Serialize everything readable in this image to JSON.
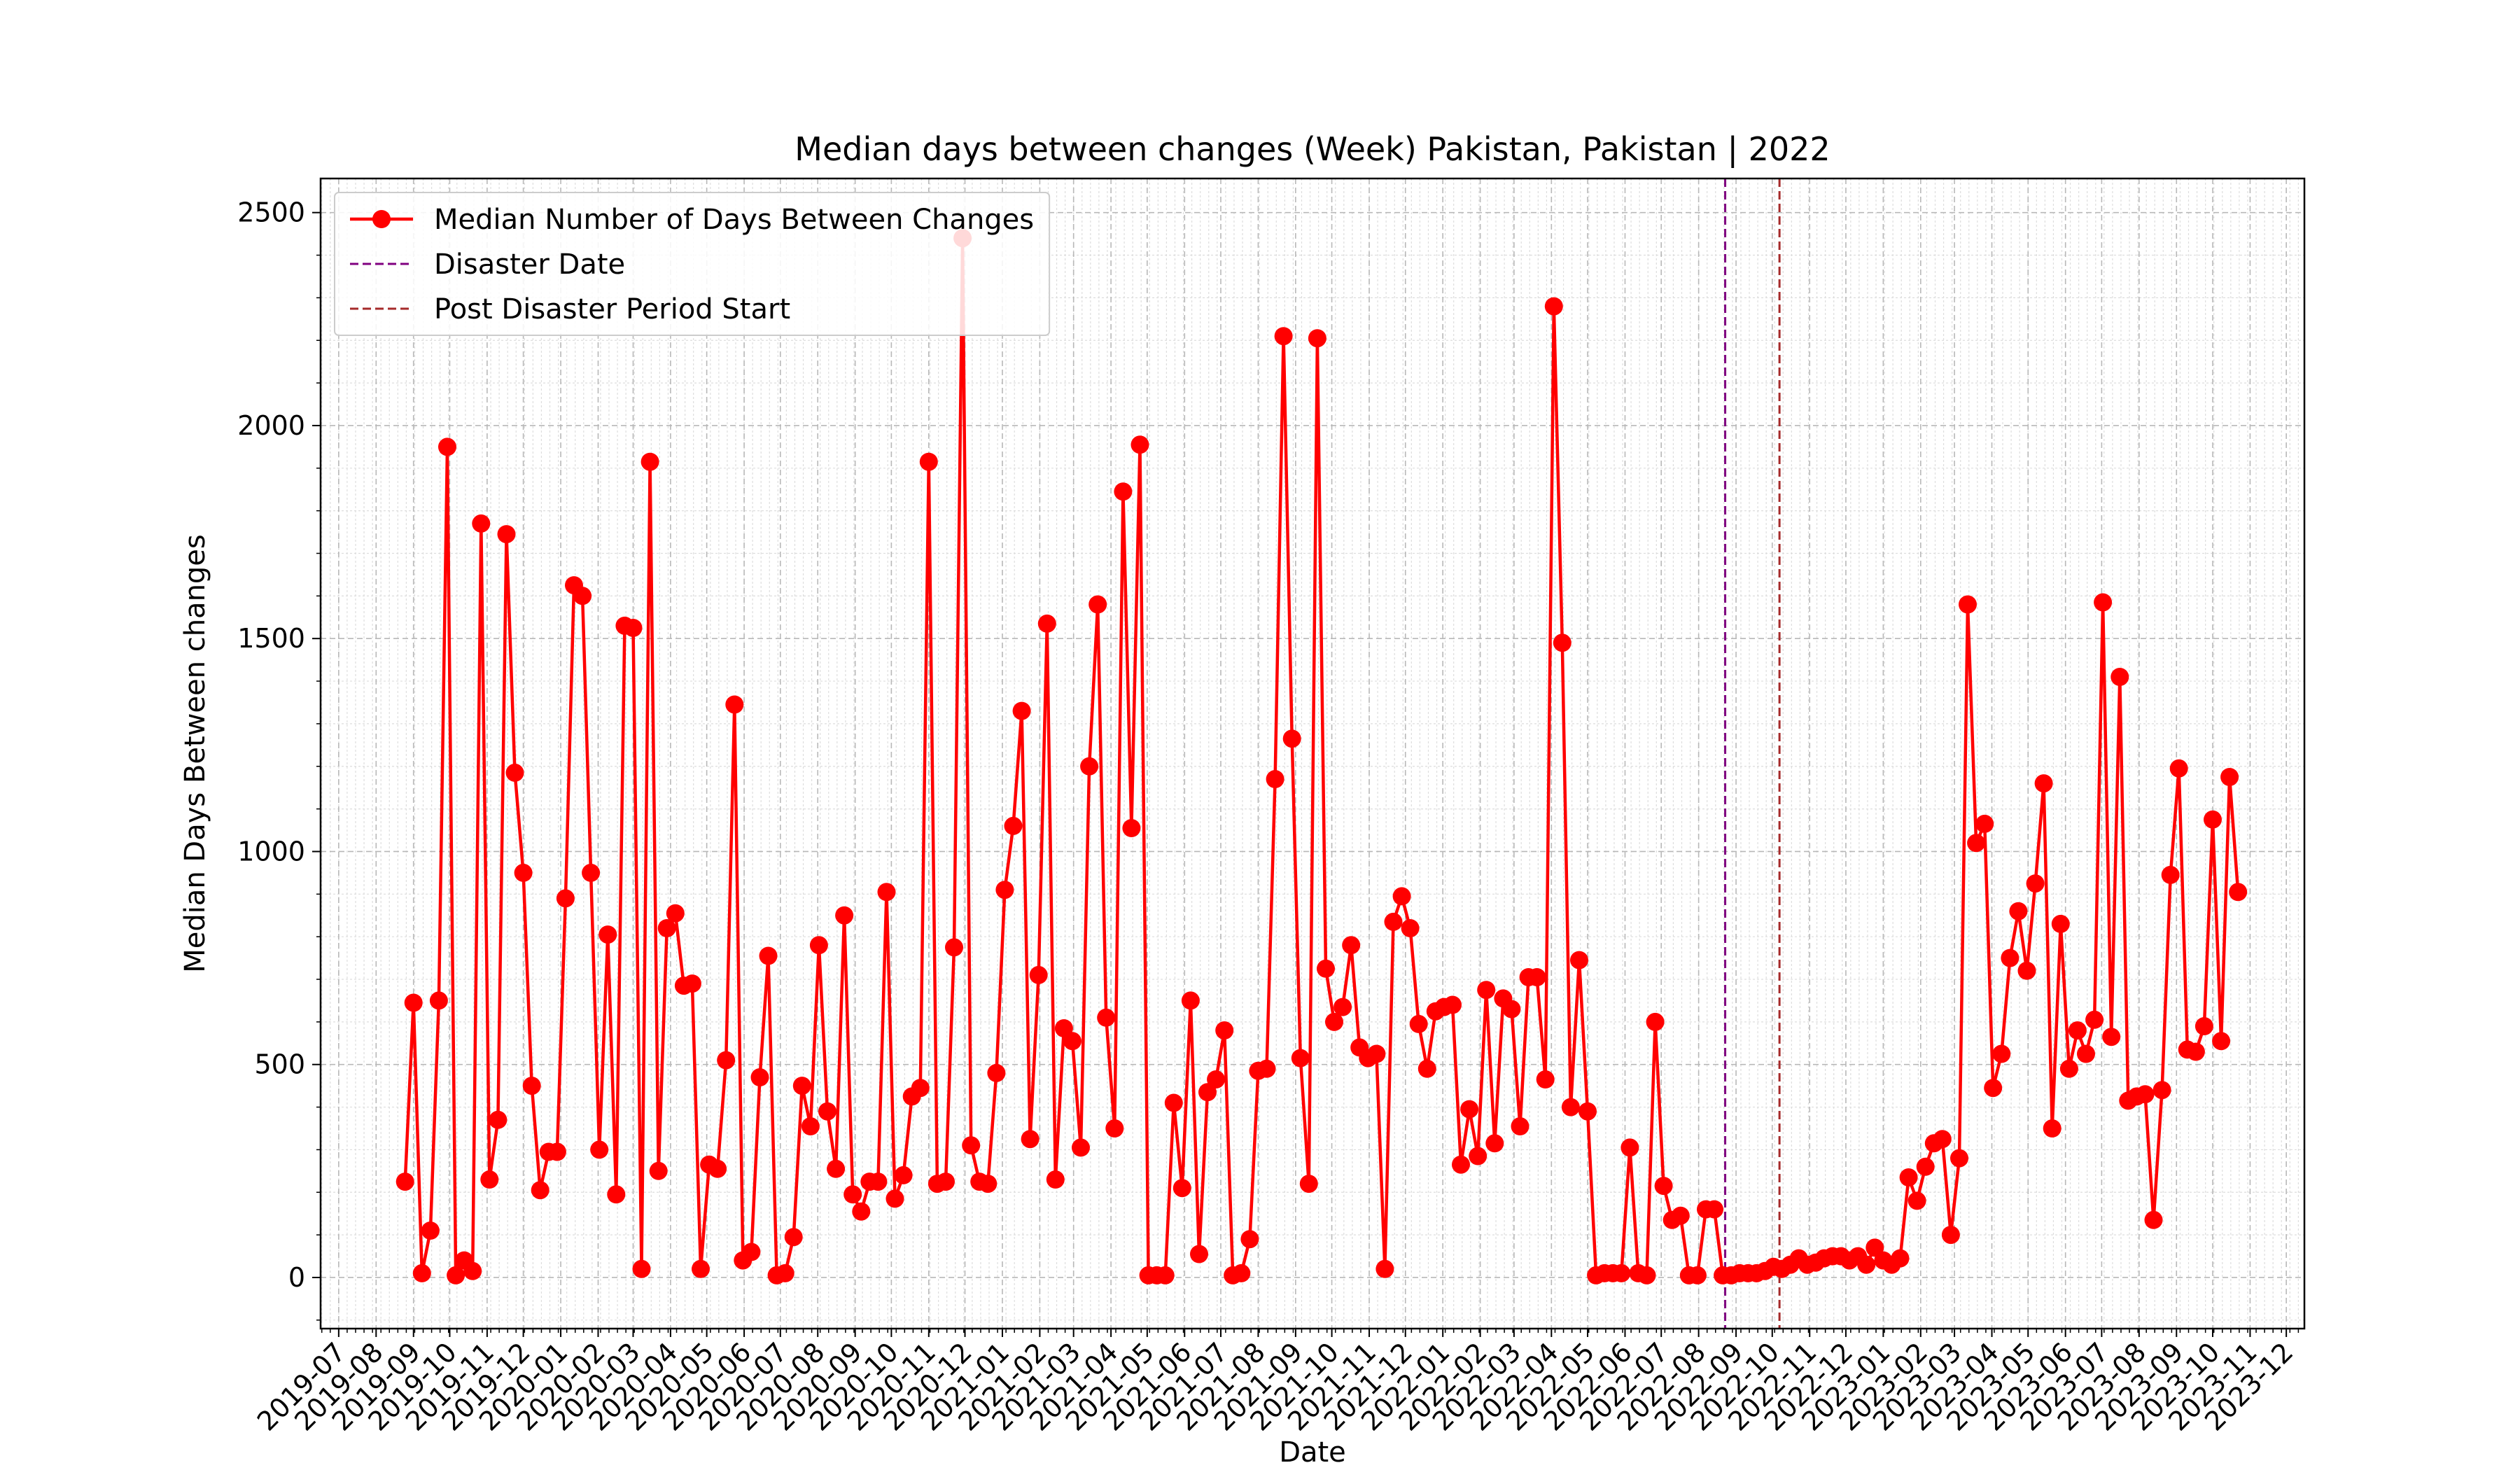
{
  "chart_data": {
    "type": "line",
    "title": "Median days between changes (Week) Pakistan, Pakistan | 2022",
    "xlabel": "Date",
    "ylabel": "Median Days Between changes",
    "xlim": [
      "2019-06-16",
      "2023-12-16"
    ],
    "ylim": [
      -120,
      2580
    ],
    "y_ticks": [
      0,
      500,
      1000,
      1500,
      2000,
      2500
    ],
    "x_ticks": [
      "2019-07",
      "2019-08",
      "2019-09",
      "2019-10",
      "2019-11",
      "2019-12",
      "2020-01",
      "2020-02",
      "2020-03",
      "2020-04",
      "2020-05",
      "2020-06",
      "2020-07",
      "2020-08",
      "2020-09",
      "2020-10",
      "2020-11",
      "2020-12",
      "2021-01",
      "2021-02",
      "2021-03",
      "2021-04",
      "2021-05",
      "2021-06",
      "2021-07",
      "2021-08",
      "2021-09",
      "2021-10",
      "2021-11",
      "2021-12",
      "2022-01",
      "2022-02",
      "2022-03",
      "2022-04",
      "2022-05",
      "2022-06",
      "2022-07",
      "2022-08",
      "2022-09",
      "2022-10",
      "2022-11",
      "2022-12",
      "2023-01",
      "2023-02",
      "2023-03",
      "2023-04",
      "2023-05",
      "2023-06",
      "2023-07",
      "2023-08",
      "2023-09",
      "2023-10",
      "2023-11",
      "2023-12"
    ],
    "grid": true,
    "legend_position": "top-left",
    "series": [
      {
        "name": "Median Number of Days Between Changes",
        "color": "#ff0000",
        "marker": "circle",
        "start_date": "2019-08-25",
        "interval_days": 7,
        "values": [
          225,
          645,
          10,
          110,
          650,
          1950,
          5,
          40,
          15,
          1770,
          230,
          370,
          1745,
          1185,
          950,
          450,
          205,
          295,
          295,
          890,
          1625,
          1600,
          950,
          300,
          805,
          195,
          1530,
          1525,
          20,
          1915,
          250,
          820,
          855,
          685,
          690,
          20,
          265,
          255,
          510,
          1345,
          40,
          60,
          470,
          755,
          5,
          10,
          95,
          450,
          355,
          780,
          390,
          255,
          850,
          195,
          155,
          225,
          225,
          905,
          185,
          240,
          425,
          445,
          1915,
          220,
          225,
          775,
          2440,
          310,
          225,
          220,
          480,
          910,
          1060,
          1330,
          325,
          710,
          1535,
          230,
          585,
          555,
          305,
          1200,
          1580,
          610,
          350,
          1845,
          1055,
          1955,
          5,
          5,
          5,
          410,
          210,
          650,
          55,
          435,
          465,
          580,
          5,
          10,
          90,
          485,
          490,
          1170,
          2210,
          1265,
          515,
          220,
          2205,
          725,
          600,
          635,
          780,
          540,
          515,
          525,
          20,
          835,
          895,
          820,
          595,
          490,
          625,
          635,
          640,
          265,
          395,
          285,
          675,
          315,
          655,
          630,
          355,
          705,
          705,
          465,
          2280,
          1490,
          400,
          745,
          390,
          5,
          10,
          10,
          10,
          305,
          10,
          5,
          600,
          215,
          135,
          145,
          5,
          5,
          160,
          160,
          5,
          5,
          10,
          10,
          10,
          15,
          25,
          20,
          30,
          45,
          30,
          35,
          45,
          50,
          50,
          40,
          50,
          30,
          70,
          40,
          30,
          45,
          235,
          180,
          260,
          315,
          325,
          100,
          280,
          1580,
          1020,
          1065,
          445,
          525,
          750,
          860,
          720,
          925,
          1160,
          350,
          830,
          490,
          580,
          525,
          605,
          1585,
          565,
          1410,
          415,
          425,
          430,
          135,
          440,
          945,
          1195,
          535,
          530,
          590,
          1075,
          555,
          1175,
          905
        ]
      }
    ],
    "vlines": [
      {
        "name": "Disaster Date",
        "date": "2022-08-23",
        "color": "#800080"
      },
      {
        "name": "Post Disaster Period Start",
        "date": "2022-10-07",
        "color": "#a52a2a"
      }
    ]
  }
}
